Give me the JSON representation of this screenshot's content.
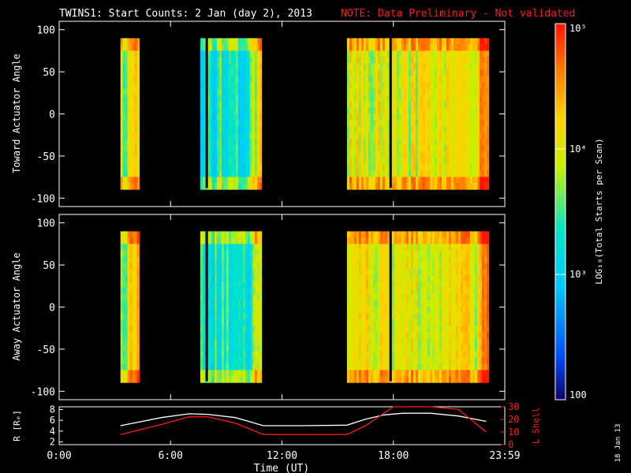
{
  "header": {
    "title": "TWINS1: Start Counts:  2 Jan (day   2), 2013",
    "note": "NOTE: Data Preliminary - Not validated"
  },
  "colors": {
    "background": "#000000",
    "axes": "#ffffff",
    "note": "#ff1a1a",
    "r_line": "#ffffff",
    "l_shell_line": "#ff1a1a",
    "colorbar_stops": [
      "#14006e",
      "#0050ff",
      "#00c8ff",
      "#00e6c8",
      "#c8f000",
      "#ffd200",
      "#ff7800",
      "#ff1400"
    ]
  },
  "chart_data": [
    {
      "type": "heatmap",
      "ylabel": "Toward Actuator Angle",
      "ylim": [
        -110,
        110
      ],
      "yticks": [
        -100,
        -50,
        0,
        50,
        100
      ],
      "angle_range": [
        -88,
        90
      ],
      "xlim_hours": [
        0,
        24
      ],
      "xticks_hours": [
        0,
        6,
        12,
        18,
        24
      ],
      "segments": [
        {
          "start_hour": 3.3,
          "end_hour": 4.2,
          "level": 0.55
        },
        {
          "start_hour": 7.6,
          "end_hour": 10.9,
          "level": 0.42
        },
        {
          "start_hour": 15.5,
          "end_hour": 23.1,
          "level": 0.62
        }
      ],
      "gaps_hours": [
        7.95,
        17.85
      ]
    },
    {
      "type": "heatmap",
      "ylabel": "Away Actuator Angle",
      "ylim": [
        -110,
        110
      ],
      "yticks": [
        -100,
        -50,
        0,
        50,
        100
      ],
      "angle_range": [
        -88,
        90
      ],
      "xlim_hours": [
        0,
        24
      ],
      "xticks_hours": [
        0,
        6,
        12,
        18,
        24
      ],
      "segments": [
        {
          "start_hour": 3.3,
          "end_hour": 4.2,
          "level": 0.58
        },
        {
          "start_hour": 7.6,
          "end_hour": 10.9,
          "level": 0.4
        },
        {
          "start_hour": 15.5,
          "end_hour": 23.1,
          "level": 0.63
        }
      ],
      "gaps_hours": [
        7.95,
        17.85
      ]
    },
    {
      "type": "line",
      "xlabel": "Time (UT)",
      "xtick_labels": [
        "0:00",
        "6:00",
        "12:00",
        "18:00",
        "23:59"
      ],
      "xticks_hours": [
        0,
        6,
        12,
        18,
        24
      ],
      "y_left_label": "R [Rₑ]",
      "y_left_ticks": [
        2,
        4,
        6,
        8
      ],
      "y_left_lim": [
        1.5,
        8.5
      ],
      "y_right_label": "L Shell",
      "y_right_ticks": [
        0,
        10,
        20,
        30
      ],
      "y_right_lim": [
        0,
        30
      ],
      "series": [
        {
          "name": "R [Rₑ]",
          "axis": "left",
          "x": [
            3.3,
            5.5,
            7.0,
            8.0,
            9.5,
            11.0,
            13.0,
            15.5,
            16.5,
            17.5,
            18.5,
            20.0,
            21.5,
            23.0
          ],
          "y": [
            5.0,
            6.5,
            7.2,
            7.1,
            6.5,
            5.0,
            5.0,
            5.1,
            6.2,
            7.0,
            7.3,
            7.3,
            6.8,
            5.8
          ]
        },
        {
          "name": "L Shell",
          "axis": "right",
          "x": [
            3.3,
            5.5,
            7.0,
            8.0,
            9.5,
            11.0,
            13.0,
            15.5,
            16.5,
            17.5,
            18.0,
            20.0,
            21.5,
            23.0
          ],
          "y": [
            8,
            16,
            22,
            22,
            17,
            8,
            8,
            8,
            15,
            25,
            32,
            32,
            28,
            10
          ]
        }
      ]
    }
  ],
  "colorbar": {
    "label": "LOG₁₀(Total Starts per Scan)",
    "tick_labels": [
      "100",
      "10³",
      "10⁴",
      "10⁵"
    ],
    "tick_fractions": [
      0.0,
      0.333,
      0.667,
      1.0
    ]
  },
  "footer": {
    "stamp": "18 Jan 13"
  }
}
